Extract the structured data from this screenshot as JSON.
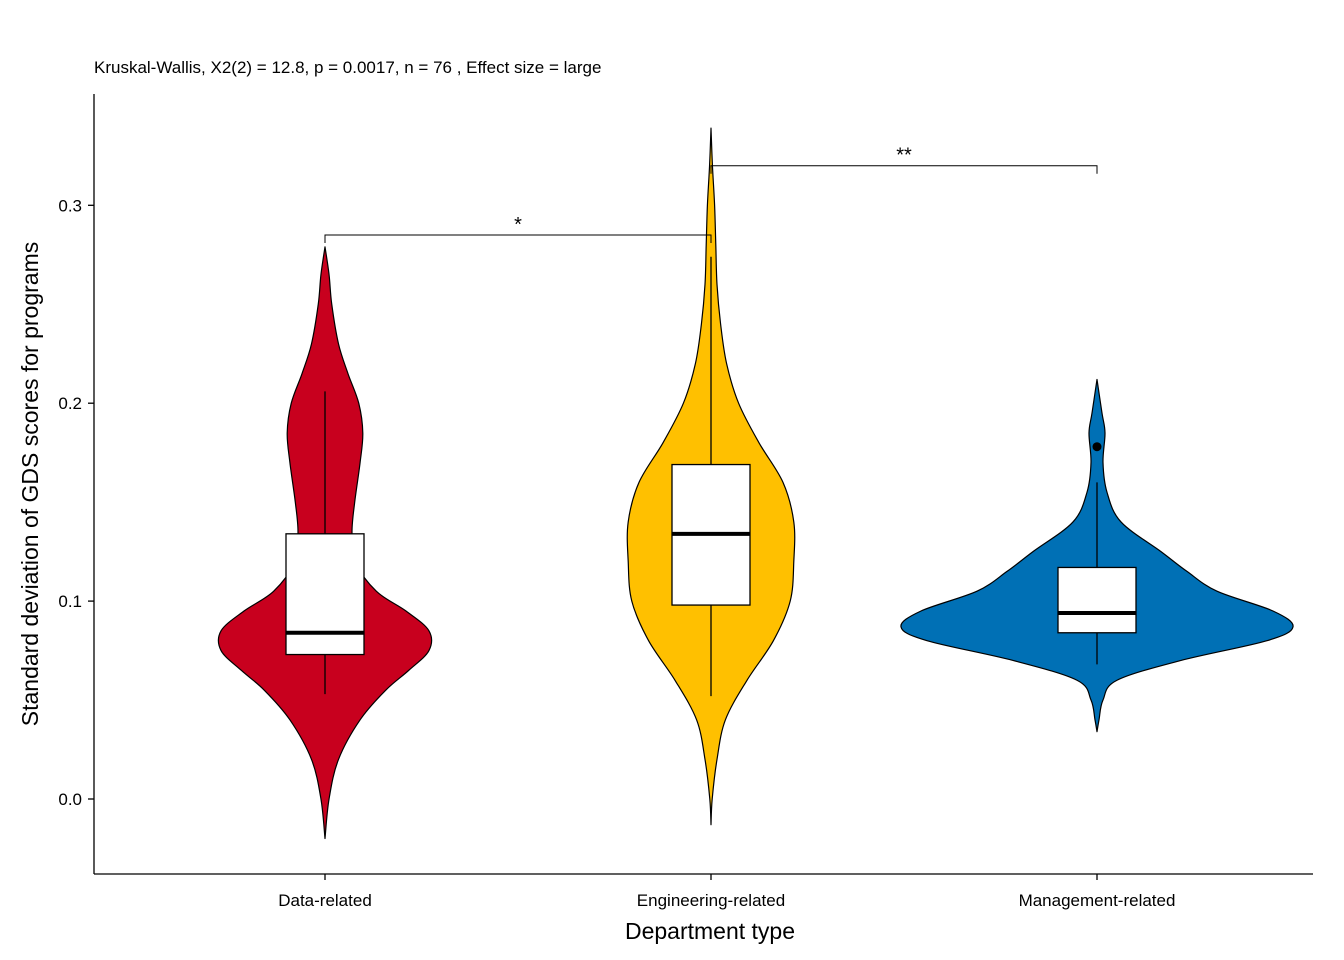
{
  "chart_data": {
    "type": "violin",
    "subtitle": "Kruskal-Wallis, X2(2) = 12.8, p = 0.0017, n = 76 , Effect size = large",
    "xlabel": "Department type",
    "ylabel": "Standard deviation of GDS scores for programs",
    "ylim": [
      -0.038,
      0.356
    ],
    "y_ticks": [
      0.0,
      0.1,
      0.2,
      0.3
    ],
    "y_tick_labels": [
      "0.0",
      "0.1",
      "0.2",
      "0.3"
    ],
    "categories": [
      "Data-related",
      "Engineering-related",
      "Management-related"
    ],
    "groups": [
      {
        "name": "Data-related",
        "color": "#C8001E",
        "violin_range": [
          -0.02,
          0.279
        ],
        "density_relative": [
          [
            -0.02,
            0.0
          ],
          [
            0.0,
            0.03
          ],
          [
            0.02,
            0.1
          ],
          [
            0.04,
            0.26
          ],
          [
            0.055,
            0.45
          ],
          [
            0.065,
            0.62
          ],
          [
            0.075,
            0.77
          ],
          [
            0.085,
            0.77
          ],
          [
            0.095,
            0.6
          ],
          [
            0.105,
            0.38
          ],
          [
            0.12,
            0.22
          ],
          [
            0.135,
            0.2
          ],
          [
            0.15,
            0.22
          ],
          [
            0.17,
            0.26
          ],
          [
            0.185,
            0.28
          ],
          [
            0.2,
            0.25
          ],
          [
            0.215,
            0.17
          ],
          [
            0.23,
            0.1
          ],
          [
            0.25,
            0.05
          ],
          [
            0.265,
            0.03
          ],
          [
            0.279,
            0.0
          ]
        ],
        "box": {
          "whisker_low": 0.053,
          "q1": 0.073,
          "median": 0.084,
          "q3": 0.134,
          "whisker_high": 0.206
        },
        "outliers": []
      },
      {
        "name": "Engineering-related",
        "color": "#FFC000",
        "violin_range": [
          -0.013,
          0.339
        ],
        "density_relative": [
          [
            -0.013,
            0.0
          ],
          [
            0.0,
            0.01
          ],
          [
            0.02,
            0.05
          ],
          [
            0.04,
            0.12
          ],
          [
            0.06,
            0.3
          ],
          [
            0.08,
            0.52
          ],
          [
            0.1,
            0.66
          ],
          [
            0.12,
            0.69
          ],
          [
            0.14,
            0.69
          ],
          [
            0.16,
            0.6
          ],
          [
            0.18,
            0.4
          ],
          [
            0.2,
            0.23
          ],
          [
            0.22,
            0.13
          ],
          [
            0.24,
            0.08
          ],
          [
            0.26,
            0.05
          ],
          [
            0.28,
            0.04
          ],
          [
            0.3,
            0.03
          ],
          [
            0.32,
            0.012
          ],
          [
            0.339,
            0.0
          ]
        ],
        "box": {
          "whisker_low": 0.052,
          "q1": 0.098,
          "median": 0.134,
          "q3": 0.169,
          "whisker_high": 0.274
        },
        "outliers": []
      },
      {
        "name": "Management-related",
        "color": "#0070B5",
        "violin_range": [
          0.034,
          0.212
        ],
        "density_relative": [
          [
            0.034,
            0.0
          ],
          [
            0.04,
            0.01
          ],
          [
            0.05,
            0.03
          ],
          [
            0.06,
            0.1
          ],
          [
            0.07,
            0.42
          ],
          [
            0.08,
            0.85
          ],
          [
            0.087,
            0.98
          ],
          [
            0.095,
            0.88
          ],
          [
            0.105,
            0.6
          ],
          [
            0.115,
            0.45
          ],
          [
            0.125,
            0.32
          ],
          [
            0.14,
            0.12
          ],
          [
            0.155,
            0.05
          ],
          [
            0.17,
            0.03
          ],
          [
            0.185,
            0.04
          ],
          [
            0.195,
            0.025
          ],
          [
            0.212,
            0.0
          ]
        ],
        "box": {
          "whisker_low": 0.068,
          "q1": 0.084,
          "median": 0.094,
          "q3": 0.117,
          "whisker_high": 0.16
        },
        "outliers": [
          0.178
        ]
      }
    ],
    "significance": [
      {
        "from": "Data-related",
        "to": "Engineering-related",
        "y": 0.285,
        "label": "*"
      },
      {
        "from": "Engineering-related",
        "to": "Management-related",
        "y": 0.32,
        "label": "**"
      }
    ],
    "grid": false,
    "legend": "none"
  }
}
